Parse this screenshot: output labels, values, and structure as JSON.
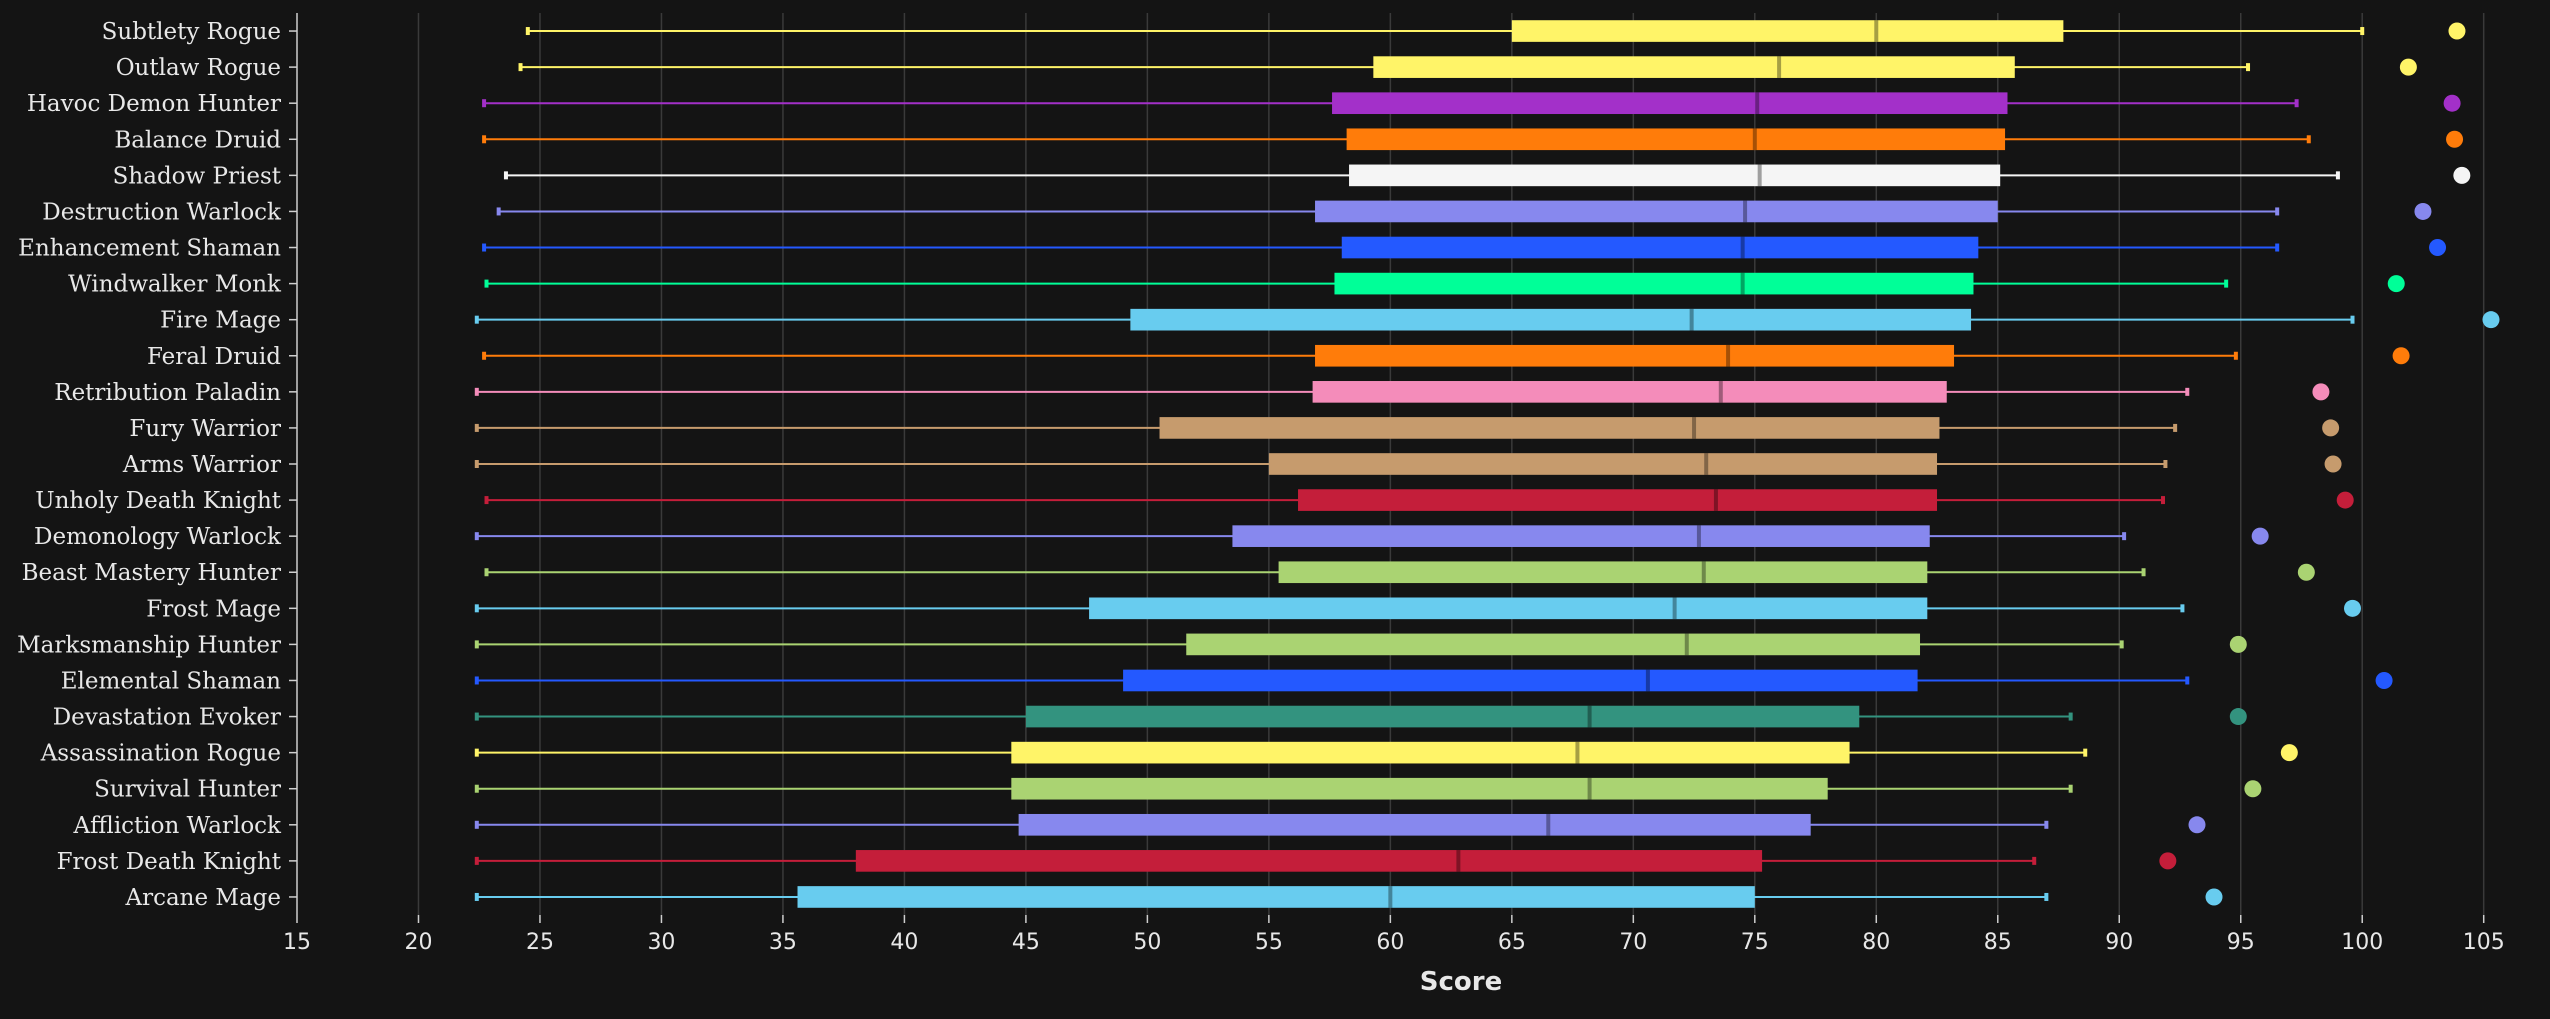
{
  "chart_data": {
    "type": "boxplot",
    "orientation": "horizontal",
    "xlabel": "Score",
    "xlim": [
      15,
      106
    ],
    "xticks": [
      15,
      20,
      25,
      30,
      35,
      40,
      45,
      50,
      55,
      60,
      65,
      70,
      75,
      80,
      85,
      90,
      95,
      100,
      105
    ],
    "grid": true,
    "series": [
      {
        "name": "Subtlety Rogue",
        "color": "#fff468",
        "whisker_low": 24.5,
        "q1": 65,
        "median": 80,
        "q3": 87.7,
        "whisker_high": 100,
        "outlier": 103.9
      },
      {
        "name": "Outlaw Rogue",
        "color": "#fff468",
        "whisker_low": 24.2,
        "q1": 59.3,
        "median": 76,
        "q3": 85.7,
        "whisker_high": 95.3,
        "outlier": 101.9
      },
      {
        "name": "Havoc Demon Hunter",
        "color": "#a330c9",
        "whisker_low": 22.7,
        "q1": 57.6,
        "median": 75.1,
        "q3": 85.4,
        "whisker_high": 97.3,
        "outlier": 103.7
      },
      {
        "name": "Balance Druid",
        "color": "#ff7c0a",
        "whisker_low": 22.7,
        "q1": 58.2,
        "median": 75,
        "q3": 85.3,
        "whisker_high": 97.8,
        "outlier": 103.8
      },
      {
        "name": "Shadow Priest",
        "color": "#f5f5f5",
        "whisker_low": 23.6,
        "q1": 58.3,
        "median": 75.2,
        "q3": 85.1,
        "whisker_high": 99,
        "outlier": 104.1
      },
      {
        "name": "Destruction Warlock",
        "color": "#8788ee",
        "whisker_low": 23.3,
        "q1": 56.9,
        "median": 74.6,
        "q3": 85,
        "whisker_high": 96.5,
        "outlier": 102.5
      },
      {
        "name": "Enhancement Shaman",
        "color": "#2459ff",
        "whisker_low": 22.7,
        "q1": 58,
        "median": 74.5,
        "q3": 84.2,
        "whisker_high": 96.5,
        "outlier": 103.1
      },
      {
        "name": "Windwalker Monk",
        "color": "#00ff98",
        "whisker_low": 22.8,
        "q1": 57.7,
        "median": 74.5,
        "q3": 84,
        "whisker_high": 94.4,
        "outlier": 101.4
      },
      {
        "name": "Fire Mage",
        "color": "#68ccef",
        "whisker_low": 22.4,
        "q1": 49.3,
        "median": 72.4,
        "q3": 83.9,
        "whisker_high": 99.6,
        "outlier": 105.3
      },
      {
        "name": "Feral Druid",
        "color": "#ff7c0a",
        "whisker_low": 22.7,
        "q1": 56.9,
        "median": 73.9,
        "q3": 83.2,
        "whisker_high": 94.8,
        "outlier": 101.6
      },
      {
        "name": "Retribution Paladin",
        "color": "#f48cba",
        "whisker_low": 22.4,
        "q1": 56.8,
        "median": 73.6,
        "q3": 82.9,
        "whisker_high": 92.8,
        "outlier": 98.3
      },
      {
        "name": "Fury Warrior",
        "color": "#c69b6d",
        "whisker_low": 22.4,
        "q1": 50.5,
        "median": 72.5,
        "q3": 82.6,
        "whisker_high": 92.3,
        "outlier": 98.7
      },
      {
        "name": "Arms Warrior",
        "color": "#c69b6d",
        "whisker_low": 22.4,
        "q1": 55,
        "median": 73,
        "q3": 82.5,
        "whisker_high": 91.9,
        "outlier": 98.8
      },
      {
        "name": "Unholy Death Knight",
        "color": "#c41e3a",
        "whisker_low": 22.8,
        "q1": 56.2,
        "median": 73.4,
        "q3": 82.5,
        "whisker_high": 91.8,
        "outlier": 99.3
      },
      {
        "name": "Demonology Warlock",
        "color": "#8788ee",
        "whisker_low": 22.4,
        "q1": 53.5,
        "median": 72.7,
        "q3": 82.2,
        "whisker_high": 90.2,
        "outlier": 95.8
      },
      {
        "name": "Beast Mastery Hunter",
        "color": "#aad372",
        "whisker_low": 22.8,
        "q1": 55.4,
        "median": 72.9,
        "q3": 82.1,
        "whisker_high": 91,
        "outlier": 97.7
      },
      {
        "name": "Frost Mage",
        "color": "#68ccef",
        "whisker_low": 22.4,
        "q1": 47.6,
        "median": 71.7,
        "q3": 82.1,
        "whisker_high": 92.6,
        "outlier": 99.6
      },
      {
        "name": "Marksmanship Hunter",
        "color": "#aad372",
        "whisker_low": 22.4,
        "q1": 51.6,
        "median": 72.2,
        "q3": 81.8,
        "whisker_high": 90.1,
        "outlier": 94.9
      },
      {
        "name": "Elemental Shaman",
        "color": "#2459ff",
        "whisker_low": 22.4,
        "q1": 49,
        "median": 70.6,
        "q3": 81.7,
        "whisker_high": 92.8,
        "outlier": 100.9
      },
      {
        "name": "Devastation Evoker",
        "color": "#33937f",
        "whisker_low": 22.4,
        "q1": 45,
        "median": 68.2,
        "q3": 79.3,
        "whisker_high": 88,
        "outlier": 94.9
      },
      {
        "name": "Assassination Rogue",
        "color": "#fff468",
        "whisker_low": 22.4,
        "q1": 44.4,
        "median": 67.7,
        "q3": 78.9,
        "whisker_high": 88.6,
        "outlier": 97
      },
      {
        "name": "Survival Hunter",
        "color": "#aad372",
        "whisker_low": 22.4,
        "q1": 44.4,
        "median": 68.2,
        "q3": 78,
        "whisker_high": 88,
        "outlier": 95.5
      },
      {
        "name": "Affliction Warlock",
        "color": "#8788ee",
        "whisker_low": 22.4,
        "q1": 44.7,
        "median": 66.5,
        "q3": 77.3,
        "whisker_high": 87,
        "outlier": 93.2
      },
      {
        "name": "Frost Death Knight",
        "color": "#c41e3a",
        "whisker_low": 22.4,
        "q1": 38,
        "median": 62.8,
        "q3": 75.3,
        "whisker_high": 86.5,
        "outlier": 92
      },
      {
        "name": "Arcane Mage",
        "color": "#68ccef",
        "whisker_low": 22.4,
        "q1": 35.6,
        "median": 60,
        "q3": 75,
        "whisker_high": 87,
        "outlier": 93.9
      }
    ]
  }
}
